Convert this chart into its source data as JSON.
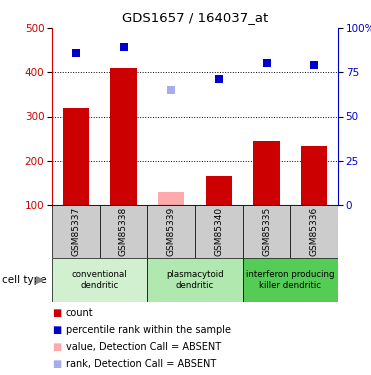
{
  "title": "GDS1657 / 164037_at",
  "samples": [
    "GSM85337",
    "GSM85338",
    "GSM85339",
    "GSM85340",
    "GSM85335",
    "GSM85336"
  ],
  "bar_values": [
    320,
    410,
    130,
    165,
    245,
    233
  ],
  "bar_colors": [
    "#cc0000",
    "#cc0000",
    "#ffaaaa",
    "#cc0000",
    "#cc0000",
    "#cc0000"
  ],
  "rank_values": [
    86,
    89,
    65,
    71,
    80,
    79
  ],
  "rank_colors": [
    "#0000cc",
    "#0000cc",
    "#aaaaee",
    "#0000cc",
    "#0000cc",
    "#0000cc"
  ],
  "ylim_left": [
    100,
    500
  ],
  "ylim_right": [
    0,
    100
  ],
  "yticks_left": [
    100,
    200,
    300,
    400,
    500
  ],
  "yticks_right": [
    0,
    25,
    50,
    75,
    100
  ],
  "ytick_labels_right": [
    "0",
    "25",
    "50",
    "75",
    "100%"
  ],
  "grid_lines": [
    200,
    300,
    400
  ],
  "groups": [
    {
      "label": "conventional\ndendritic",
      "cols": [
        0,
        1
      ],
      "color": "#d0f0d0"
    },
    {
      "label": "plasmacytoid\ndendritic",
      "cols": [
        2,
        3
      ],
      "color": "#b0e8b0"
    },
    {
      "label": "interferon producing\nkiller dendritic",
      "cols": [
        4,
        5
      ],
      "color": "#55cc55"
    }
  ],
  "legend_items": [
    {
      "color": "#cc0000",
      "label": "count"
    },
    {
      "color": "#0000cc",
      "label": "percentile rank within the sample"
    },
    {
      "color": "#ffaaaa",
      "label": "value, Detection Call = ABSENT"
    },
    {
      "color": "#aaaaee",
      "label": "rank, Detection Call = ABSENT"
    }
  ],
  "cell_type_label": "cell type",
  "bar_width": 0.55,
  "left_spine_color": "#cc0000",
  "right_spine_color": "#0000cc",
  "sample_box_color": "#cccccc",
  "marker_size": 6
}
